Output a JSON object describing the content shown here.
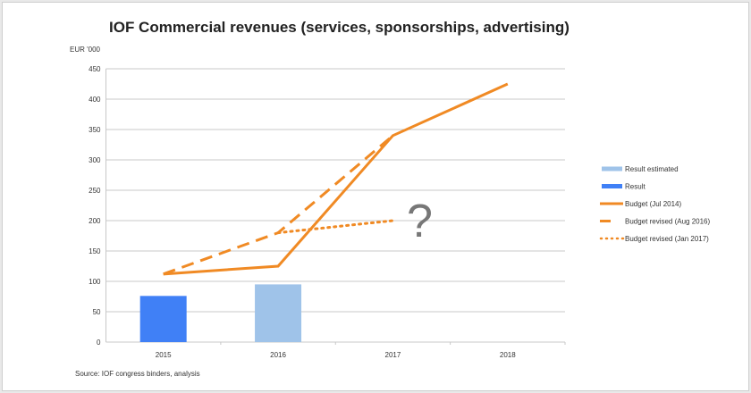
{
  "chart_data": {
    "type": "bar+line",
    "title": "IOF Commercial revenues (services, sponsorships, advertising)",
    "ylabel": "EUR '000",
    "ylim": [
      0,
      450
    ],
    "yticks": [
      0,
      50,
      100,
      150,
      200,
      250,
      300,
      350,
      400,
      450
    ],
    "categories": [
      "2015",
      "2016",
      "2017",
      "2018"
    ],
    "grid": true,
    "legend_position": "right",
    "series": [
      {
        "name": "Result estimated",
        "kind": "bar",
        "color": "#9fc3e9",
        "values": [
          null,
          95,
          null,
          null
        ]
      },
      {
        "name": "Result",
        "kind": "bar",
        "color": "#4080f6",
        "values": [
          76,
          null,
          null,
          null
        ]
      },
      {
        "name": "Budget (Jul 2014)",
        "kind": "line",
        "style": "solid",
        "color": "#f08a24",
        "values": [
          112,
          125,
          340,
          425
        ]
      },
      {
        "name": "Budget revised (Aug 2016)",
        "kind": "line",
        "style": "dashed",
        "color": "#f08a24",
        "values": [
          112,
          180,
          340,
          null
        ]
      },
      {
        "name": "Budget revised (Jan 2017)",
        "kind": "line",
        "style": "dotted",
        "color": "#f08a24",
        "values": [
          null,
          180,
          200,
          null
        ]
      }
    ],
    "annotations": [
      "?"
    ],
    "source": "Source: IOF congress binders, analysis"
  }
}
